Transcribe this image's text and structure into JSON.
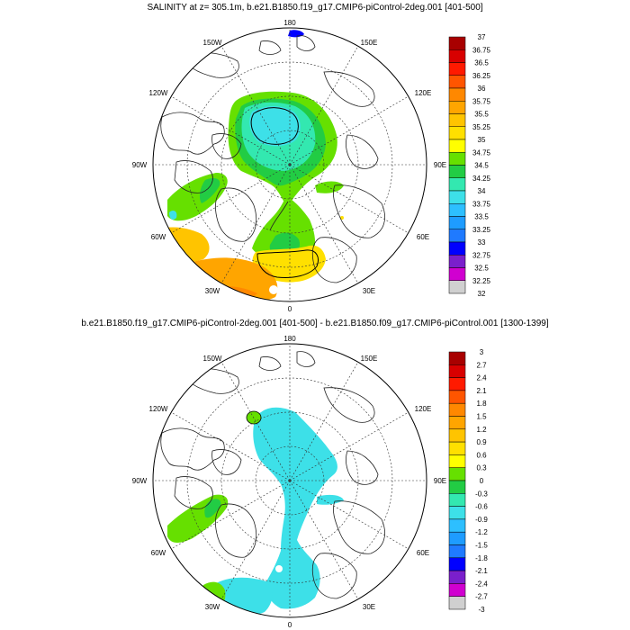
{
  "titles": {
    "top": "SALINITY at z= 305.1m, b.e21.B1850.f19_g17.CMIP6-piControl-2deg.001 [401-500]",
    "bottom": "b.e21.B1850.f19_g17.CMIP6-piControl-2deg.001 [401-500] - b.e21.B1850.f09_g17.CMIP6-piControl.001 [1300-1399]"
  },
  "longitude_labels": {
    "180": "180",
    "150E": "150E",
    "120E": "120E",
    "90E": "90E",
    "60E": "60E",
    "30E": "30E",
    "0": "0",
    "30W": "30W",
    "60W": "60W",
    "90W": "90W",
    "120W": "120W",
    "150W": "150W"
  },
  "colorbar_top": {
    "labels": [
      "37",
      "36.75",
      "36.5",
      "36.25",
      "36",
      "35.75",
      "35.5",
      "35.25",
      "35",
      "34.75",
      "34.5",
      "34.25",
      "34",
      "33.75",
      "33.5",
      "33.25",
      "33",
      "32.75",
      "32.5",
      "32.25",
      "32"
    ],
    "colors": [
      "#a80000",
      "#d80000",
      "#ff1a00",
      "#ff5500",
      "#ff8800",
      "#ffa500",
      "#ffc400",
      "#ffe000",
      "#ffff00",
      "#66e000",
      "#22cc44",
      "#33e8b0",
      "#3de0e8",
      "#2dbfff",
      "#1e9cff",
      "#1f7aff",
      "#0000ff",
      "#7a1fcc",
      "#d000d0",
      "#d0d0d0",
      "#707070"
    ]
  },
  "colorbar_bottom": {
    "labels": [
      "3",
      "2.7",
      "2.4",
      "2.1",
      "1.8",
      "1.5",
      "1.2",
      "0.9",
      "0.6",
      "0.3",
      "0",
      "-0.3",
      "-0.6",
      "-0.9",
      "-1.2",
      "-1.5",
      "-1.8",
      "-2.1",
      "-2.4",
      "-2.7",
      "-3"
    ],
    "colors": [
      "#a80000",
      "#d80000",
      "#ff1a00",
      "#ff5500",
      "#ff8800",
      "#ffa500",
      "#ffc400",
      "#ffe000",
      "#ffff00",
      "#66e000",
      "#22cc44",
      "#33e8b0",
      "#3de0e8",
      "#2dbfff",
      "#1e9cff",
      "#1f7aff",
      "#0000ff",
      "#7a1fcc",
      "#d000d0",
      "#d0d0d0",
      "#707070"
    ]
  }
}
